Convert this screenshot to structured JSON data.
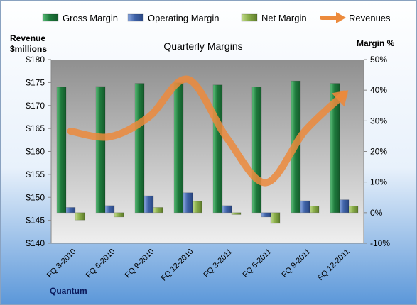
{
  "chart_data": {
    "type": "bar",
    "title": "Quarterly Margins",
    "company": "Quantum",
    "left_axis": {
      "label_line1": "Revenue",
      "label_line2": "$millions",
      "ylim": [
        140,
        180
      ],
      "ticks": [
        "$140",
        "$145",
        "$150",
        "$155",
        "$160",
        "$165",
        "$170",
        "$175",
        "$180"
      ]
    },
    "right_axis": {
      "label": "Margin %",
      "ylim": [
        -10,
        50
      ],
      "ticks": [
        "-10%",
        "0%",
        "10%",
        "20%",
        "30%",
        "40%",
        "50%"
      ]
    },
    "categories": [
      "FQ 3-2010",
      "FQ 6-2010",
      "FQ 9-2010",
      "FQ 12-2010",
      "FQ 3-2011",
      "FQ 6-2011",
      "FQ 9-2011",
      "FQ 12-2011"
    ],
    "series": [
      {
        "name": "Gross Margin",
        "axis": "right",
        "kind": "bar",
        "color": "#1e7a3c",
        "values": [
          41,
          41.2,
          42.2,
          42.4,
          41.7,
          41.1,
          43,
          42.2
        ]
      },
      {
        "name": "Operating Margin",
        "axis": "right",
        "kind": "bar",
        "color": "#3f62a8",
        "values": [
          1.7,
          2.3,
          5.5,
          6.5,
          2.3,
          -1.4,
          3.9,
          4.2
        ]
      },
      {
        "name": "Net Margin",
        "axis": "right",
        "kind": "bar",
        "color": "#8aae4a",
        "values": [
          -2.4,
          -1.4,
          1.7,
          3.7,
          -0.6,
          -3.5,
          2.2,
          2.2
        ]
      },
      {
        "name": "Revenues",
        "axis": "left",
        "kind": "line",
        "color": "#ec8a3c",
        "values": [
          164.4,
          163.2,
          167.5,
          175.7,
          162.9,
          153.2,
          164.5,
          172.5
        ]
      }
    ],
    "legend_position": "top",
    "grid": false
  }
}
